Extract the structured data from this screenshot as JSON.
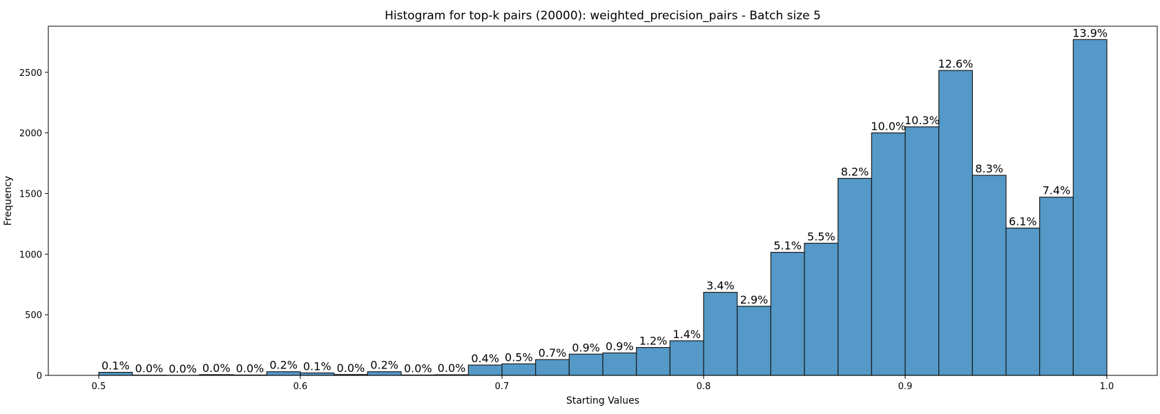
{
  "chart_data": {
    "type": "bar",
    "title": "Histogram for top-k pairs (20000): weighted_precision_pairs - Batch size 5",
    "xlabel": "Starting Values",
    "ylabel": "Frequency",
    "xlim": [
      0.475,
      1.025
    ],
    "ylim": [
      0,
      2880
    ],
    "x_ticks": [
      0.5,
      0.6,
      0.7,
      0.8,
      0.9,
      1.0
    ],
    "x_tick_labels": [
      "0.5",
      "0.6",
      "0.7",
      "0.8",
      "0.9",
      "1.0"
    ],
    "y_ticks": [
      0,
      500,
      1000,
      1500,
      2000,
      2500
    ],
    "y_tick_labels": [
      "0",
      "500",
      "1000",
      "1500",
      "2000",
      "2500"
    ],
    "bin_start": 0.5,
    "bin_width": 0.016667,
    "values": [
      25,
      2,
      1,
      6,
      3,
      30,
      20,
      7,
      30,
      3,
      5,
      85,
      95,
      130,
      175,
      185,
      230,
      285,
      685,
      570,
      1015,
      1090,
      1625,
      2000,
      2050,
      2515,
      1650,
      1215,
      1470,
      2770
    ],
    "labels": [
      "0.1%",
      "0.0%",
      "0.0%",
      "0.0%",
      "0.0%",
      "0.2%",
      "0.1%",
      "0.0%",
      "0.2%",
      "0.0%",
      "0.0%",
      "0.4%",
      "0.5%",
      "0.7%",
      "0.9%",
      "0.9%",
      "1.2%",
      "1.4%",
      "3.4%",
      "2.9%",
      "5.1%",
      "5.5%",
      "8.2%",
      "10.0%",
      "10.3%",
      "12.6%",
      "8.3%",
      "6.1%",
      "7.4%",
      "13.9%"
    ],
    "bar_color": "#5499c7",
    "edge_color": "#1a1a1a",
    "grid": false,
    "legend": "none"
  }
}
